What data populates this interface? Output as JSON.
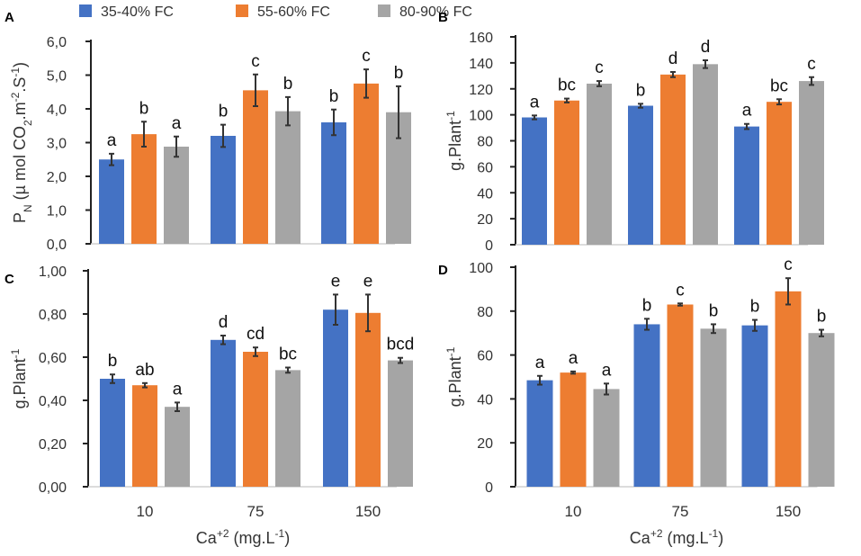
{
  "legend": [
    {
      "name": "35-40% FC",
      "color": "#4472C4"
    },
    {
      "name": "55-60% FC",
      "color": "#ED7D31"
    },
    {
      "name": "80-90% FC",
      "color": "#A5A5A5"
    }
  ],
  "x_axis_label": {
    "text": "Ca",
    "sup": "+2",
    "unit": " (mg.L",
    "unit_sup": "-1",
    "close": ")"
  },
  "chart_data": [
    {
      "panel": "A",
      "type": "bar",
      "categories": [
        "10",
        "75",
        "150"
      ],
      "ylim": [
        0,
        6
      ],
      "ystep": 1,
      "tick_decimals": 1,
      "tick_sep": ",",
      "ylabel": {
        "main": "P",
        "main_sub": "N",
        "rest": " (µ mol CO",
        "rest_sub": "2",
        "rest2": ".m",
        "rest2_sup": "-2",
        "rest3": ".S",
        "rest3_sup": "-1",
        "close": ")"
      },
      "series": [
        {
          "name": "35-40% FC",
          "values": [
            2.5,
            3.2,
            3.6
          ],
          "errors": [
            0.17,
            0.33,
            0.38
          ],
          "labels": [
            "a",
            "b",
            "b"
          ]
        },
        {
          "name": "55-60% FC",
          "values": [
            3.25,
            4.55,
            4.75
          ],
          "errors": [
            0.37,
            0.47,
            0.42
          ],
          "labels": [
            "b",
            "c",
            "c"
          ]
        },
        {
          "name": "80-90% FC",
          "values": [
            2.88,
            3.93,
            3.9
          ],
          "errors": [
            0.3,
            0.42,
            0.77
          ],
          "labels": [
            "a",
            "b",
            "b"
          ]
        }
      ]
    },
    {
      "panel": "B",
      "type": "bar",
      "categories": [
        "10",
        "75",
        "150"
      ],
      "ylim": [
        0,
        160
      ],
      "ystep": 20,
      "tick_decimals": 0,
      "tick_sep": ",",
      "ylabel": {
        "main": "g.Plant",
        "main_sup": "-1"
      },
      "series": [
        {
          "name": "35-40% FC",
          "values": [
            98,
            107,
            91
          ],
          "errors": [
            1.5,
            1.5,
            2
          ],
          "labels": [
            "a",
            "b",
            "a"
          ]
        },
        {
          "name": "55-60% FC",
          "values": [
            111,
            131,
            110
          ],
          "errors": [
            1.5,
            2,
            2
          ],
          "labels": [
            "bc",
            "d",
            "bc"
          ]
        },
        {
          "name": "80-90% FC",
          "values": [
            124,
            139,
            126
          ],
          "errors": [
            2,
            3,
            3
          ],
          "labels": [
            "c",
            "d",
            "c"
          ]
        }
      ]
    },
    {
      "panel": "C",
      "type": "bar",
      "categories": [
        "10",
        "75",
        "150"
      ],
      "ylim": [
        0,
        1
      ],
      "ystep": 0.2,
      "tick_decimals": 2,
      "tick_sep": ",",
      "ylabel": {
        "main": "g.Plant",
        "main_sup": "-1"
      },
      "series": [
        {
          "name": "35-40% FC",
          "values": [
            0.5,
            0.68,
            0.82
          ],
          "errors": [
            0.02,
            0.02,
            0.07
          ],
          "labels": [
            "b",
            "d",
            "e"
          ]
        },
        {
          "name": "55-60% FC",
          "values": [
            0.47,
            0.625,
            0.805
          ],
          "errors": [
            0.01,
            0.02,
            0.085
          ],
          "labels": [
            "ab",
            "cd",
            "e"
          ]
        },
        {
          "name": "80-90% FC",
          "values": [
            0.37,
            0.54,
            0.585
          ],
          "errors": [
            0.02,
            0.012,
            0.012
          ],
          "labels": [
            "a",
            "bc",
            "bcd"
          ]
        }
      ]
    },
    {
      "panel": "D",
      "type": "bar",
      "categories": [
        "10",
        "75",
        "150"
      ],
      "ylim": [
        0,
        100
      ],
      "ystep": 20,
      "tick_decimals": 0,
      "tick_sep": ",",
      "ylabel": {
        "main": "g.Plant",
        "main_sup": "-1"
      },
      "series": [
        {
          "name": "35-40% FC",
          "values": [
            48.5,
            74,
            73.5
          ],
          "errors": [
            2,
            2.5,
            2.5
          ],
          "labels": [
            "a",
            "b",
            "b"
          ]
        },
        {
          "name": "55-60% FC",
          "values": [
            52,
            83,
            89
          ],
          "errors": [
            0.5,
            0.5,
            6
          ],
          "labels": [
            "a",
            "c",
            "c"
          ]
        },
        {
          "name": "80-90% FC",
          "values": [
            44.5,
            72,
            70
          ],
          "errors": [
            2.5,
            2,
            1.5
          ],
          "labels": [
            "a",
            "b",
            "b"
          ]
        }
      ]
    }
  ]
}
